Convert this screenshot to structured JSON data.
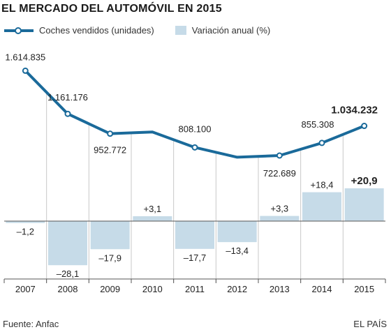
{
  "chart_data": {
    "type": "line+bar",
    "title": "EL MERCADO DEL AUTOMÓVIL EN 2015",
    "categories": [
      "2007",
      "2008",
      "2009",
      "2010",
      "2011",
      "2012",
      "2013",
      "2014",
      "2015"
    ],
    "series": [
      {
        "name": "Coches vendidos (unidades)",
        "type": "line",
        "values": [
          1614835,
          1161176,
          952772,
          970000,
          808100,
          705000,
          722689,
          855308,
          1034232
        ],
        "labels": [
          "1.614.835",
          "1.161.176",
          "952.772",
          "",
          "808.100",
          "",
          "722.689",
          "855.308",
          "1.034.232"
        ],
        "color": "#1a6a9a"
      },
      {
        "name": "Variación anual (%)",
        "type": "bar",
        "values": [
          -1.2,
          -28.1,
          -17.9,
          3.1,
          -17.7,
          -13.4,
          3.3,
          18.4,
          20.9
        ],
        "labels": [
          "–1,2",
          "–28,1",
          "–17,9",
          "+3,1",
          "–17,7",
          "–13,4",
          "+3,3",
          "+18,4",
          "+20,9"
        ],
        "color": "#c6dbe8"
      }
    ],
    "highlight_index": 8,
    "line_ylim": [
      0,
      1700000
    ],
    "bar_ylim": [
      -35,
      35
    ],
    "grid": false
  },
  "source": "Fuente: Anfac",
  "brand": "EL PAÍS"
}
